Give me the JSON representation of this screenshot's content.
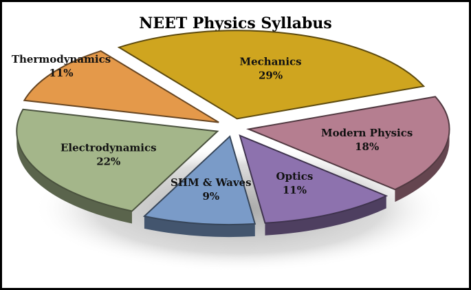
{
  "chart_data": {
    "type": "pie",
    "title": "NEET Physics Syllabus",
    "slices": [
      {
        "label": "Mechanics",
        "value": 29,
        "display": "29%",
        "color": "#cfa51f"
      },
      {
        "label": "Modern Physics",
        "value": 18,
        "display": "18%",
        "color": "#b57e90"
      },
      {
        "label": "Optics",
        "value": 11,
        "display": "11%",
        "color": "#8d72ae"
      },
      {
        "label": "SHM & Waves",
        "value": 9,
        "display": "9%",
        "color": "#7a9bc8"
      },
      {
        "label": "Electrodynamics",
        "value": 22,
        "display": "22%",
        "color": "#a4b68a"
      },
      {
        "label": "Thermodynamics",
        "value": 11,
        "display": "11%",
        "color": "#e4994a"
      }
    ],
    "legend": "none"
  }
}
